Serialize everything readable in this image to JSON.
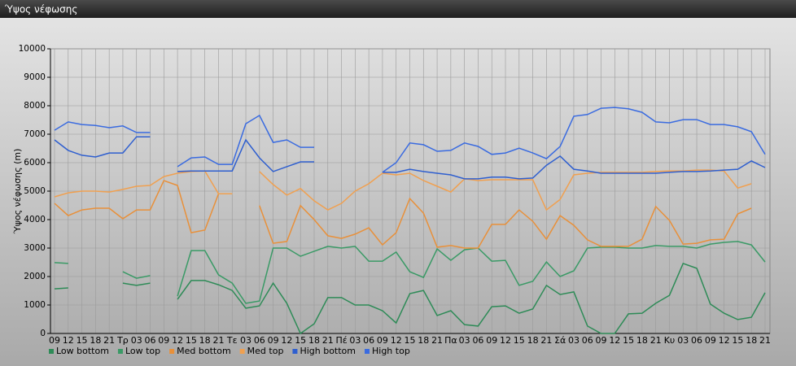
{
  "chart_data": {
    "type": "line",
    "title": "Ύψος νέφωσης",
    "y_label": "Ύψος νέφωσης (m)",
    "categories": [
      "09",
      "12",
      "15",
      "18",
      "21",
      "Τρ",
      "03",
      "06",
      "09",
      "12",
      "15",
      "18",
      "21",
      "Τε",
      "03",
      "06",
      "09",
      "12",
      "15",
      "18",
      "21",
      "Πέ",
      "03",
      "06",
      "09",
      "12",
      "15",
      "18",
      "21",
      "Πα",
      "03",
      "06",
      "09",
      "12",
      "15",
      "18",
      "21",
      "Σά",
      "03",
      "06",
      "09",
      "12",
      "15",
      "18",
      "21",
      "Κυ",
      "03",
      "06",
      "09",
      "12",
      "15",
      "18",
      "21"
    ],
    "ylim": [
      0,
      10000
    ],
    "yticks": [
      0,
      1000,
      2000,
      3000,
      4000,
      5000,
      6000,
      7000,
      8000,
      9000,
      10000
    ],
    "grid": true,
    "series": [
      {
        "name": "Low bottom",
        "color": "#2e8b57",
        "values": [
          1570,
          1600,
          null,
          null,
          null,
          1770,
          1690,
          1770,
          null,
          1200,
          1860,
          1860,
          1710,
          1510,
          890,
          970,
          1770,
          1060,
          0,
          340,
          1260,
          1260,
          1000,
          1000,
          800,
          370,
          1400,
          1510,
          630,
          800,
          310,
          260,
          940,
          970,
          710,
          860,
          1690,
          1370,
          1460,
          260,
          0,
          0,
          690,
          710,
          1060,
          1340,
          2460,
          2290,
          1030,
          710,
          490,
          570,
          1430
        ]
      },
      {
        "name": "Low top",
        "color": "#3a9a66",
        "values": [
          2490,
          2460,
          null,
          null,
          null,
          2170,
          1940,
          2030,
          null,
          1310,
          2910,
          2910,
          2060,
          1770,
          1060,
          1140,
          3000,
          3000,
          2710,
          2890,
          3060,
          3000,
          3060,
          2540,
          2540,
          2860,
          2170,
          1970,
          2970,
          2570,
          2940,
          3000,
          2540,
          2570,
          1690,
          1830,
          2510,
          2000,
          2200,
          3000,
          3030,
          3030,
          3000,
          3000,
          3090,
          3060,
          3060,
          3000,
          3140,
          3200,
          3230,
          3110,
          2510
        ]
      },
      {
        "name": "Med bottom",
        "color": "#e8903a",
        "values": [
          4570,
          4140,
          4340,
          4400,
          4400,
          4030,
          4340,
          4340,
          5370,
          5200,
          3540,
          3630,
          4910,
          4910,
          null,
          4490,
          3170,
          3230,
          4490,
          4000,
          3430,
          3340,
          3490,
          3710,
          3110,
          3540,
          4740,
          4230,
          3030,
          3090,
          3000,
          3000,
          3830,
          3830,
          4340,
          3940,
          3310,
          4140,
          3800,
          3290,
          3060,
          3060,
          3060,
          3310,
          4460,
          3970,
          3140,
          3170,
          3290,
          3310,
          4200,
          4400,
          null
        ]
      },
      {
        "name": "Med top",
        "color": "#f0a050",
        "values": [
          4800,
          4940,
          5000,
          5000,
          4970,
          5060,
          5170,
          5200,
          5510,
          5630,
          5690,
          5710,
          4910,
          4910,
          null,
          5690,
          5230,
          4860,
          5090,
          4660,
          4340,
          4570,
          5000,
          5260,
          5630,
          5570,
          5630,
          5370,
          5170,
          4970,
          5430,
          5370,
          5400,
          5400,
          5400,
          5400,
          4340,
          4710,
          5570,
          5630,
          5660,
          5660,
          5660,
          5660,
          5690,
          5710,
          5710,
          5740,
          5740,
          5710,
          5110,
          5260,
          null
        ]
      },
      {
        "name": "High bottom",
        "color": "#2f5fcf",
        "values": [
          6800,
          6430,
          6260,
          6200,
          6340,
          6340,
          6910,
          6910,
          null,
          5690,
          5710,
          5710,
          5710,
          5710,
          6800,
          6170,
          5690,
          5860,
          6030,
          6030,
          null,
          null,
          null,
          null,
          5660,
          5660,
          5770,
          5690,
          5630,
          5570,
          5430,
          5430,
          5490,
          5490,
          5430,
          5460,
          5910,
          6230,
          5770,
          5710,
          5630,
          5630,
          5630,
          5630,
          5630,
          5660,
          5690,
          5690,
          5710,
          5740,
          5770,
          6060,
          5830
        ]
      },
      {
        "name": "High top",
        "color": "#3a6be0",
        "values": [
          7140,
          7430,
          7340,
          7310,
          7230,
          7290,
          7060,
          7060,
          null,
          5860,
          6170,
          6200,
          5940,
          5940,
          7370,
          7660,
          6710,
          6800,
          6540,
          6540,
          null,
          null,
          null,
          null,
          5660,
          6000,
          6690,
          6630,
          6400,
          6430,
          6690,
          6570,
          6290,
          6340,
          6510,
          6340,
          6140,
          6570,
          7630,
          7690,
          7910,
          7940,
          7890,
          7770,
          7430,
          7400,
          7510,
          7510,
          7340,
          7340,
          7260,
          7090,
          6290
        ]
      }
    ]
  }
}
